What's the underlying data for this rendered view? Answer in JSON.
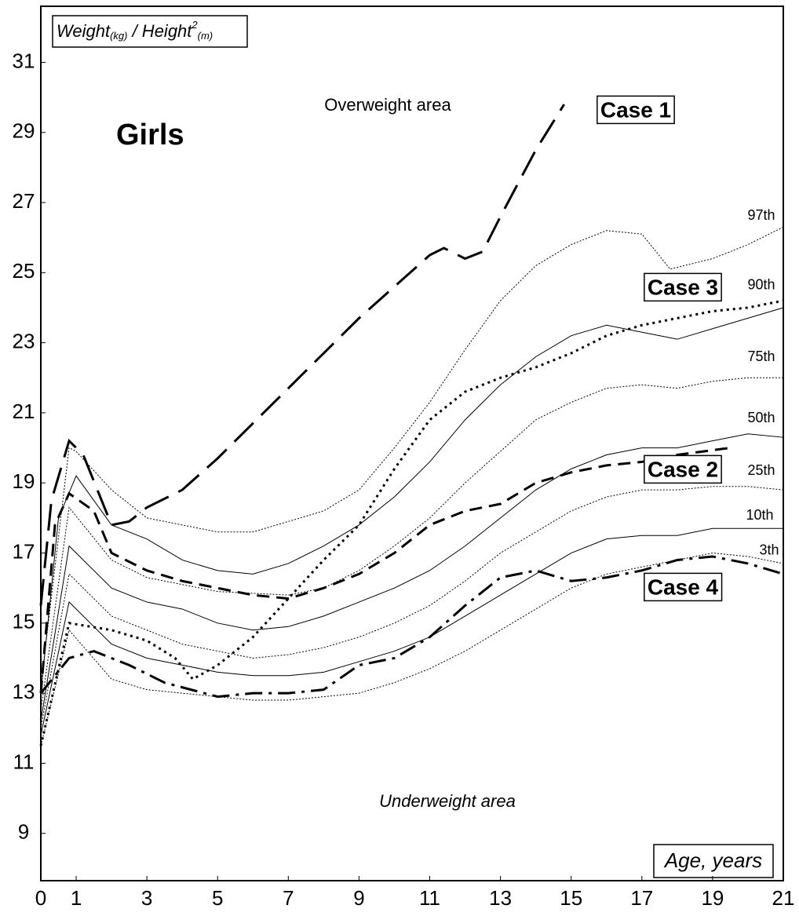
{
  "chart_data": {
    "type": "line",
    "title": "Girls",
    "y_label": {
      "parts": [
        "Weight",
        "(kg)",
        " / Height",
        "2",
        "(m)"
      ]
    },
    "x_label": "Age, years",
    "annotations": [
      "Overweight area",
      "Underweight area"
    ],
    "xlim": [
      0,
      21
    ],
    "xticks": [
      0,
      1,
      3,
      5,
      7,
      9,
      11,
      13,
      15,
      17,
      19,
      21
    ],
    "ylim": [
      7.65,
      32.6
    ],
    "yticks": [
      9,
      11,
      13,
      15,
      17,
      19,
      21,
      23,
      25,
      27,
      29,
      31
    ],
    "series": [
      {
        "name": "97th",
        "color": "#000000",
        "style": "dotted",
        "width": 1,
        "x": [
          0,
          0.8,
          1,
          2,
          3,
          5,
          6,
          8,
          9,
          10,
          11,
          12,
          13,
          14,
          15,
          16,
          17,
          17.8,
          19,
          20,
          21
        ],
        "values": [
          13.2,
          20.0,
          19.9,
          18.8,
          18.0,
          17.6,
          17.6,
          18.2,
          18.8,
          20.0,
          21.3,
          22.8,
          24.2,
          25.2,
          25.8,
          26.2,
          26.1,
          25.1,
          25.4,
          25.8,
          26.3
        ]
      },
      {
        "name": "90th",
        "color": "#000000",
        "style": "solid",
        "width": 1,
        "x": [
          0,
          0.5,
          1,
          2,
          3,
          4,
          5,
          6,
          7,
          8,
          9,
          10,
          11,
          12,
          13,
          14,
          15,
          16,
          17,
          18,
          19,
          20,
          21
        ],
        "values": [
          13.0,
          18.0,
          19.2,
          17.8,
          17.4,
          16.8,
          16.5,
          16.4,
          16.7,
          17.2,
          17.8,
          18.6,
          19.6,
          20.8,
          21.8,
          22.6,
          23.2,
          23.5,
          23.3,
          23.1,
          23.4,
          23.7,
          24.0
        ]
      },
      {
        "name": "75th",
        "color": "#000000",
        "style": "dotted",
        "width": 1,
        "x": [
          0,
          0.8,
          2,
          3,
          5,
          7,
          8,
          9,
          10,
          11,
          12,
          13,
          14,
          15,
          16,
          17,
          18,
          19,
          20,
          21
        ],
        "values": [
          12.5,
          18.3,
          16.8,
          16.3,
          15.9,
          15.8,
          16.0,
          16.5,
          17.2,
          18.0,
          19.0,
          19.9,
          20.8,
          21.3,
          21.7,
          21.8,
          21.7,
          21.9,
          22.0,
          22.0
        ]
      },
      {
        "name": "50th",
        "color": "#000000",
        "style": "solid",
        "width": 1,
        "x": [
          0,
          0.8,
          1,
          2,
          3,
          4,
          5,
          6,
          7,
          8,
          9,
          10,
          11,
          12,
          13,
          14,
          15,
          16,
          17,
          18,
          19,
          20,
          21
        ],
        "values": [
          12.2,
          17.2,
          17.0,
          16.0,
          15.6,
          15.4,
          15.0,
          14.8,
          14.9,
          15.2,
          15.6,
          16.0,
          16.5,
          17.2,
          18.0,
          18.8,
          19.4,
          19.8,
          20.0,
          20.0,
          20.2,
          20.4,
          20.3
        ]
      },
      {
        "name": "25th",
        "color": "#000000",
        "style": "dotted",
        "width": 1,
        "x": [
          0,
          0.8,
          2,
          3,
          4,
          5,
          6,
          7,
          8,
          9,
          10,
          11,
          12,
          13,
          14,
          15,
          16,
          17,
          18,
          19,
          20,
          21
        ],
        "values": [
          12.0,
          16.4,
          15.2,
          14.8,
          14.4,
          14.2,
          14.0,
          14.1,
          14.3,
          14.6,
          15.0,
          15.5,
          16.2,
          17.0,
          17.6,
          18.2,
          18.6,
          18.8,
          18.8,
          18.9,
          18.9,
          18.8
        ]
      },
      {
        "name": "10th",
        "color": "#000000",
        "style": "solid",
        "width": 1,
        "x": [
          0,
          0.8,
          2,
          3,
          4,
          5,
          6,
          7,
          8,
          9,
          10,
          11,
          12,
          13,
          14,
          15,
          16,
          17,
          18,
          19,
          20,
          21
        ],
        "values": [
          11.8,
          15.6,
          14.4,
          14.0,
          13.8,
          13.6,
          13.5,
          13.5,
          13.6,
          13.9,
          14.2,
          14.6,
          15.2,
          15.8,
          16.4,
          17.0,
          17.4,
          17.5,
          17.5,
          17.7,
          17.7,
          17.7
        ]
      },
      {
        "name": "3th",
        "color": "#000000",
        "style": "dotted",
        "width": 1,
        "x": [
          0,
          0.8,
          2,
          3,
          4,
          5,
          6,
          7,
          8,
          9,
          10,
          11,
          12,
          13,
          14,
          15,
          16,
          17,
          18,
          19,
          20,
          21
        ],
        "values": [
          11.5,
          14.8,
          13.4,
          13.1,
          13.0,
          12.9,
          12.8,
          12.8,
          12.9,
          13.0,
          13.3,
          13.7,
          14.2,
          14.8,
          15.4,
          16.0,
          16.4,
          16.6,
          16.8,
          17.0,
          16.9,
          16.7
        ]
      },
      {
        "name": "Case 1",
        "color": "#000000",
        "style": "longdash",
        "width": 3,
        "x": [
          0,
          0.3,
          0.8,
          1.2,
          2,
          2.5,
          3,
          4,
          5,
          6,
          7,
          8,
          9,
          10,
          11,
          11.4,
          12,
          12.5,
          13,
          14,
          14.8
        ],
        "values": [
          15.5,
          18.5,
          20.2,
          19.8,
          17.8,
          17.9,
          18.3,
          18.8,
          19.7,
          20.7,
          21.7,
          22.7,
          23.7,
          24.6,
          25.5,
          25.7,
          25.4,
          25.6,
          26.6,
          28.5,
          29.8
        ]
      },
      {
        "name": "Case 2",
        "color": "#000000",
        "style": "dashed",
        "width": 3,
        "x": [
          0,
          0.4,
          0.8,
          1.5,
          2,
          3,
          4,
          5,
          6,
          7,
          8,
          9,
          10,
          11,
          12,
          13,
          14,
          15,
          16,
          17,
          18,
          19.5
        ],
        "values": [
          13.0,
          17.8,
          18.7,
          18.2,
          17.0,
          16.5,
          16.2,
          16.0,
          15.8,
          15.7,
          16.0,
          16.4,
          17.0,
          17.8,
          18.2,
          18.4,
          19.0,
          19.3,
          19.5,
          19.6,
          19.8,
          20.0
        ]
      },
      {
        "name": "Case 3",
        "color": "#000000",
        "style": "dotted",
        "width": 3,
        "x": [
          0,
          0.8,
          2,
          3,
          3.8,
          4.3,
          5,
          6,
          7,
          8,
          9,
          10,
          11,
          12,
          13,
          14,
          15,
          16,
          17,
          18,
          19,
          20,
          21
        ],
        "values": [
          11.5,
          15.0,
          14.8,
          14.5,
          14.0,
          13.4,
          13.8,
          14.6,
          15.7,
          16.8,
          17.8,
          19.4,
          20.8,
          21.6,
          22.0,
          22.3,
          22.7,
          23.2,
          23.5,
          23.7,
          23.9,
          24.0,
          24.2
        ]
      },
      {
        "name": "Case 4",
        "color": "#000000",
        "style": "dashdot",
        "width": 3,
        "x": [
          0,
          0.8,
          1.5,
          2.5,
          3.5,
          5,
          6,
          7,
          8,
          9,
          10,
          11,
          12,
          13,
          14,
          15,
          16,
          17,
          18,
          19,
          20,
          21
        ],
        "values": [
          13.0,
          14.0,
          14.2,
          13.8,
          13.3,
          12.9,
          13.0,
          13.0,
          13.1,
          13.8,
          14.0,
          14.6,
          15.5,
          16.3,
          16.5,
          16.2,
          16.3,
          16.5,
          16.8,
          16.9,
          16.7,
          16.4
        ]
      }
    ]
  }
}
